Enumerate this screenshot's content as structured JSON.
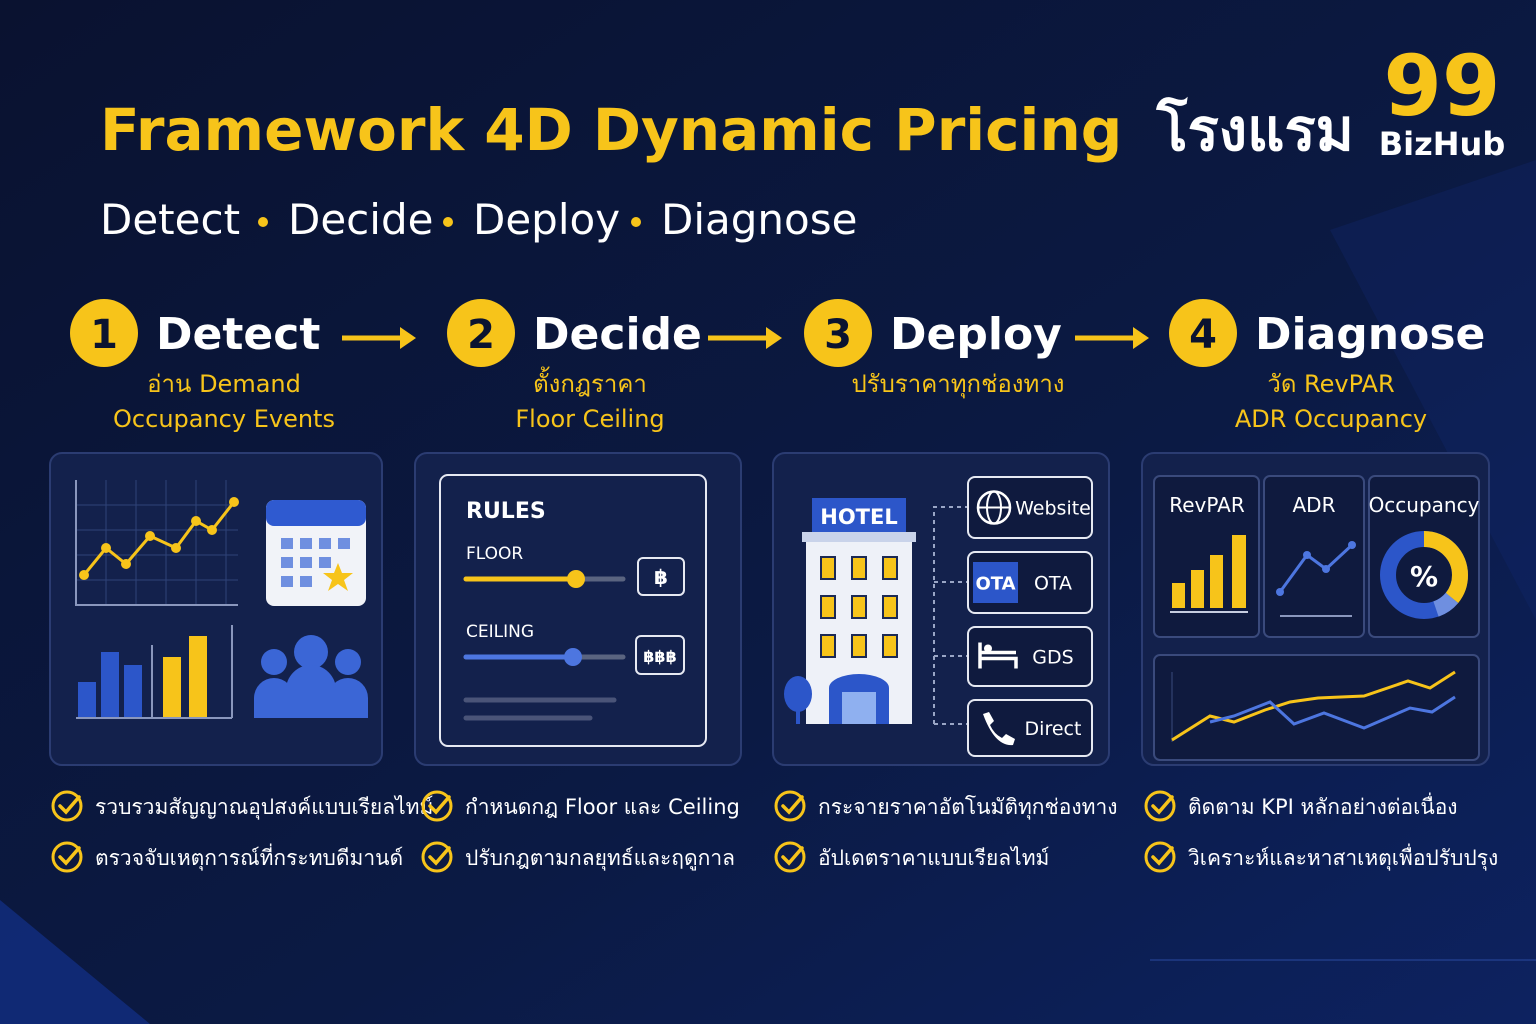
{
  "header": {
    "title": "Framework 4D Dynamic Pricing",
    "title_thai": "โรงแรม",
    "subtitle": [
      "Detect",
      "Decide",
      "Deploy",
      "Diagnose"
    ]
  },
  "logo": {
    "number": "99",
    "name": "BizHub"
  },
  "steps": [
    {
      "number": 1,
      "name": "Detect",
      "description": [
        "อ่าน Demand",
        "Occupancy Events"
      ],
      "checklist": [
        "รวบรวมสัญญาณอุปสงค์แบบเรียลไทม์",
        "ตรวจจับเหตุการณ์ที่กระทบดีมานด์"
      ]
    },
    {
      "number": 2,
      "name": "Decide",
      "description": [
        "ตั้งกฎราคา",
        "Floor Ceiling"
      ],
      "checklist": [
        "กำหนดกฎ Floor และ Ceiling",
        "ปรับกฎตามกลยุทธ์และฤดูกาล"
      ]
    },
    {
      "number": 3,
      "name": "Deploy",
      "description": [
        "ปรับราคาทุกช่องทาง"
      ],
      "checklist": [
        "กระจายราคาอัตโนมัติทุกช่องทาง",
        "อัปเดตราคาแบบเรียลไทม์"
      ]
    },
    {
      "number": 4,
      "name": "Diagnose",
      "description": [
        "วัด RevPAR",
        "ADR Occupancy"
      ],
      "checklist": [
        "ติดตาม KPI หลักอย่างต่อเนื่อง",
        "วิเคราะห์และหาสาเหตุเพื่อปรับปรุง"
      ]
    }
  ],
  "rules_panel": {
    "title": "RULES",
    "floor_label": "FLOOR",
    "floor_symbol": "฿",
    "ceiling_label": "CEILING",
    "ceiling_symbol": "฿฿฿"
  },
  "deploy_panel": {
    "hotel_label": "HOTEL",
    "ota_badge": "OTA",
    "channels": [
      "Website",
      "OTA",
      "GDS",
      "Direct"
    ]
  },
  "diagnose_panel": {
    "kpis": [
      "RevPAR",
      "ADR",
      "Occupancy"
    ],
    "donut_label": "%"
  }
}
